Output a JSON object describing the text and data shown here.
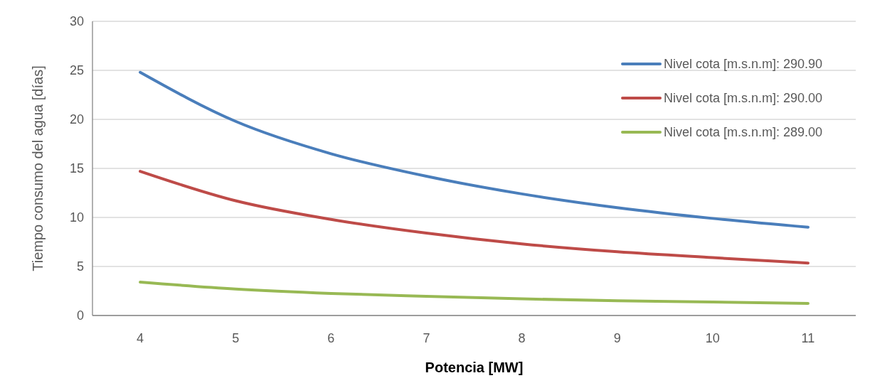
{
  "chart_data": {
    "type": "line",
    "xlabel": "Potencia [MW]",
    "ylabel": "Tiempo consumo del agua [días]",
    "categories": [
      "4",
      "5",
      "6",
      "7",
      "8",
      "9",
      "10",
      "11"
    ],
    "series": [
      {
        "name": "Nivel cota [m.s.n.m]: 290.90",
        "color": "#4a7ebb",
        "values": [
          24.8,
          19.8,
          16.5,
          14.2,
          12.4,
          11.0,
          9.9,
          9.0
        ]
      },
      {
        "name": "Nivel cota [m.s.n.m]: 290.00",
        "color": "#be4b48",
        "values": [
          14.7,
          11.7,
          9.8,
          8.4,
          7.3,
          6.5,
          5.9,
          5.35
        ]
      },
      {
        "name": "Nivel cota [m.s.n.m]: 289.00",
        "color": "#98b954",
        "values": [
          3.4,
          2.7,
          2.25,
          1.95,
          1.7,
          1.5,
          1.37,
          1.23
        ]
      }
    ],
    "ylim": [
      0,
      30
    ],
    "yticks": [
      0,
      5,
      10,
      15,
      20,
      25,
      30
    ],
    "grid": "y",
    "legend": "top right",
    "marker": "none",
    "line_style": "solid"
  }
}
